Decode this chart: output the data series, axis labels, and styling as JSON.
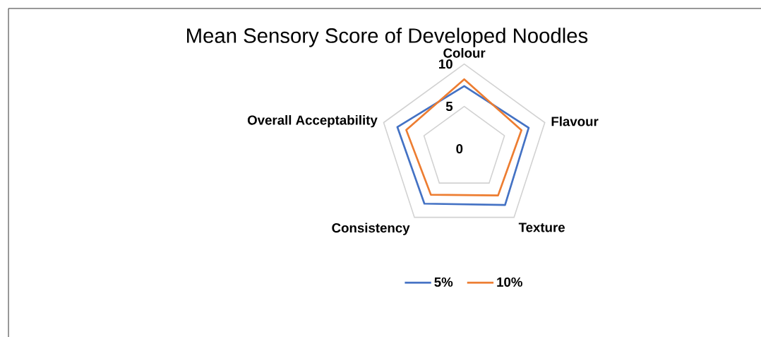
{
  "chart_data": {
    "type": "radar",
    "title": "Mean Sensory Score of Developed Noodles",
    "categories": [
      "Colour",
      "Flavour",
      "Texture",
      "Consistency",
      "Overall Acceptability"
    ],
    "series": [
      {
        "name": "5%",
        "color": "#4472c4",
        "values": [
          7.4,
          8.0,
          8.2,
          8.0,
          8.3
        ]
      },
      {
        "name": "10%",
        "color": "#ed7d31",
        "values": [
          8.2,
          7.1,
          6.8,
          6.7,
          7.2
        ]
      }
    ],
    "ylim": [
      0,
      10
    ],
    "yticks": [
      0,
      5,
      10
    ],
    "grid": true,
    "legend": "bottom",
    "marker": "none"
  }
}
